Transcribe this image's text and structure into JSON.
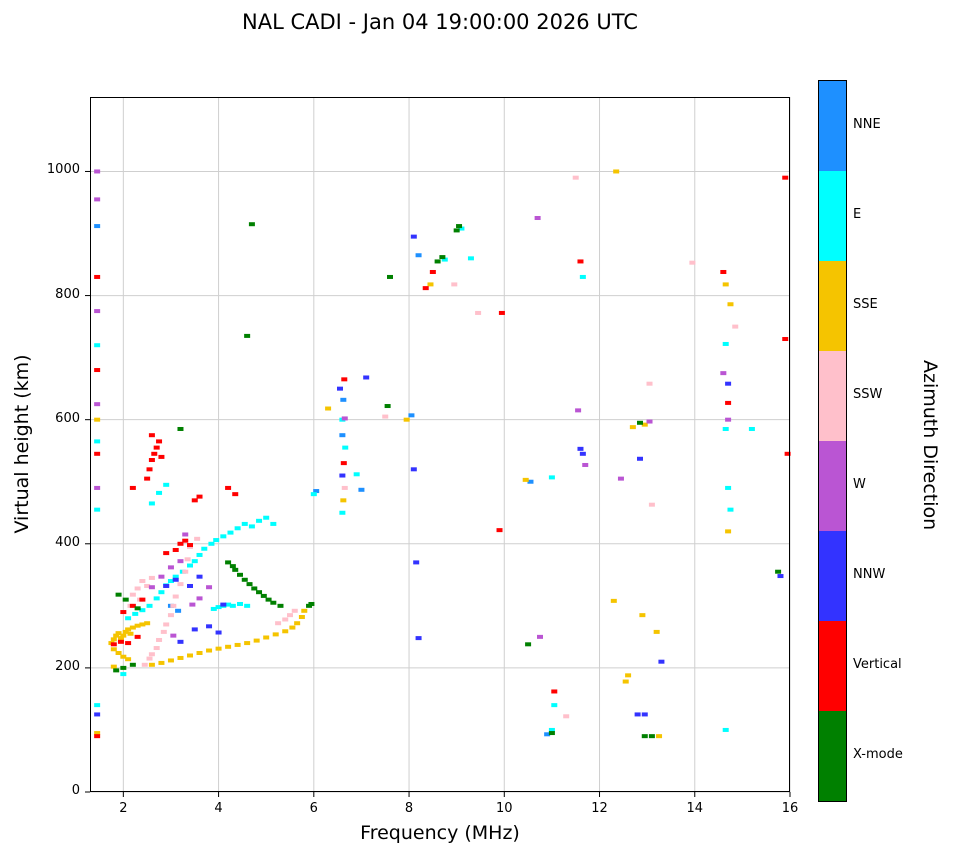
{
  "chart_data": {
    "type": "scatter",
    "title": "NAL CADI - Jan 04 19:00:00 2026 UTC",
    "xlabel": "Frequency (MHz)",
    "ylabel": "Virtual height (km)",
    "colorbar_label": "Azimuth Direction",
    "xlim": [
      1.3,
      16
    ],
    "ylim": [
      0,
      1120
    ],
    "xticks": [
      2,
      4,
      6,
      8,
      10,
      12,
      14,
      16
    ],
    "yticks": [
      0,
      200,
      400,
      600,
      800,
      1000
    ],
    "grid": true,
    "marker": "square",
    "legend_position": "right-colorbar",
    "legend": [
      {
        "label": "NNE",
        "color": "#1E90FF"
      },
      {
        "label": "E",
        "color": "#00FFFF"
      },
      {
        "label": "SSE",
        "color": "#F5C400"
      },
      {
        "label": "SSW",
        "color": "#FFC0CB"
      },
      {
        "label": "W",
        "color": "#BA55D3"
      },
      {
        "label": "NNW",
        "color": "#3333FF"
      },
      {
        "label": "Vertical",
        "color": "#FF0000"
      },
      {
        "label": "X-mode",
        "color": "#008000"
      }
    ],
    "series": [
      {
        "name": "NNE",
        "color": "#1E90FF",
        "points": [
          [
            1.45,
            912
          ],
          [
            3.0,
            300
          ],
          [
            3.15,
            292
          ],
          [
            6.05,
            485
          ],
          [
            6.6,
            575
          ],
          [
            6.62,
            632
          ],
          [
            7.0,
            487
          ],
          [
            8.05,
            607
          ],
          [
            8.2,
            865
          ],
          [
            10.55,
            500
          ],
          [
            10.9,
            93
          ]
        ]
      },
      {
        "name": "E",
        "color": "#00FFFF",
        "points": [
          [
            1.45,
            720
          ],
          [
            1.45,
            565
          ],
          [
            1.45,
            455
          ],
          [
            1.45,
            140
          ],
          [
            2.0,
            190
          ],
          [
            2.1,
            280
          ],
          [
            2.25,
            287
          ],
          [
            2.4,
            293
          ],
          [
            2.55,
            300
          ],
          [
            2.7,
            312
          ],
          [
            2.8,
            322
          ],
          [
            2.9,
            333
          ],
          [
            3.0,
            340
          ],
          [
            3.1,
            347
          ],
          [
            3.25,
            355
          ],
          [
            3.4,
            365
          ],
          [
            3.5,
            372
          ],
          [
            3.6,
            382
          ],
          [
            3.7,
            392
          ],
          [
            3.85,
            400
          ],
          [
            3.95,
            406
          ],
          [
            4.1,
            412
          ],
          [
            4.25,
            418
          ],
          [
            4.4,
            425
          ],
          [
            4.55,
            432
          ],
          [
            4.7,
            428
          ],
          [
            4.85,
            437
          ],
          [
            5.0,
            442
          ],
          [
            5.15,
            432
          ],
          [
            3.9,
            295
          ],
          [
            4.0,
            298
          ],
          [
            4.1,
            300
          ],
          [
            4.2,
            302
          ],
          [
            4.3,
            300
          ],
          [
            4.45,
            303
          ],
          [
            4.6,
            300
          ],
          [
            2.6,
            465
          ],
          [
            2.75,
            482
          ],
          [
            2.9,
            495
          ],
          [
            6.0,
            480
          ],
          [
            6.6,
            450
          ],
          [
            6.66,
            555
          ],
          [
            6.6,
            600
          ],
          [
            6.9,
            512
          ],
          [
            8.75,
            858
          ],
          [
            9.1,
            908
          ],
          [
            9.3,
            860
          ],
          [
            11.0,
            100
          ],
          [
            11.05,
            140
          ],
          [
            11.0,
            507
          ],
          [
            11.65,
            830
          ],
          [
            14.65,
            585
          ],
          [
            15.2,
            585
          ],
          [
            14.65,
            722
          ],
          [
            14.7,
            490
          ],
          [
            14.75,
            455
          ],
          [
            14.65,
            100
          ]
        ]
      },
      {
        "name": "SSE",
        "color": "#F5C400",
        "points": [
          [
            1.45,
            600
          ],
          [
            1.45,
            95
          ],
          [
            1.75,
            240
          ],
          [
            1.8,
            246
          ],
          [
            1.85,
            252
          ],
          [
            1.9,
            256
          ],
          [
            1.95,
            248
          ],
          [
            2.0,
            252
          ],
          [
            2.05,
            258
          ],
          [
            2.1,
            262
          ],
          [
            2.15,
            255
          ],
          [
            2.2,
            265
          ],
          [
            2.3,
            268
          ],
          [
            2.4,
            270
          ],
          [
            2.5,
            272
          ],
          [
            1.8,
            230
          ],
          [
            1.9,
            224
          ],
          [
            2.0,
            218
          ],
          [
            2.1,
            214
          ],
          [
            1.8,
            202
          ],
          [
            2.6,
            205
          ],
          [
            2.8,
            208
          ],
          [
            3.0,
            212
          ],
          [
            3.2,
            216
          ],
          [
            3.4,
            220
          ],
          [
            3.6,
            224
          ],
          [
            3.8,
            228
          ],
          [
            4.0,
            231
          ],
          [
            4.2,
            234
          ],
          [
            4.4,
            237
          ],
          [
            4.6,
            240
          ],
          [
            4.8,
            244
          ],
          [
            5.0,
            249
          ],
          [
            5.2,
            254
          ],
          [
            5.4,
            259
          ],
          [
            5.55,
            265
          ],
          [
            5.65,
            272
          ],
          [
            5.75,
            282
          ],
          [
            5.8,
            292
          ],
          [
            6.3,
            618
          ],
          [
            6.62,
            470
          ],
          [
            7.95,
            600
          ],
          [
            8.45,
            818
          ],
          [
            10.45,
            503
          ],
          [
            12.3,
            308
          ],
          [
            12.35,
            1000
          ],
          [
            12.55,
            178
          ],
          [
            12.6,
            188
          ],
          [
            12.7,
            588
          ],
          [
            12.95,
            592
          ],
          [
            12.9,
            285
          ],
          [
            13.2,
            258
          ],
          [
            13.25,
            90
          ],
          [
            14.65,
            818
          ],
          [
            14.75,
            786
          ],
          [
            14.7,
            420
          ]
        ]
      },
      {
        "name": "SSW",
        "color": "#FFC0CB",
        "points": [
          [
            2.45,
            205
          ],
          [
            2.55,
            215
          ],
          [
            2.6,
            222
          ],
          [
            2.7,
            232
          ],
          [
            2.75,
            245
          ],
          [
            2.85,
            258
          ],
          [
            2.9,
            270
          ],
          [
            3.0,
            285
          ],
          [
            3.05,
            300
          ],
          [
            3.1,
            315
          ],
          [
            3.2,
            335
          ],
          [
            3.3,
            355
          ],
          [
            3.35,
            375
          ],
          [
            3.4,
            395
          ],
          [
            2.2,
            318
          ],
          [
            2.3,
            328
          ],
          [
            2.4,
            340
          ],
          [
            2.5,
            332
          ],
          [
            2.6,
            345
          ],
          [
            2.35,
            310
          ],
          [
            2.15,
            300
          ],
          [
            5.25,
            272
          ],
          [
            5.4,
            278
          ],
          [
            5.5,
            285
          ],
          [
            5.6,
            292
          ],
          [
            3.55,
            408
          ],
          [
            6.65,
            490
          ],
          [
            7.5,
            605
          ],
          [
            8.95,
            818
          ],
          [
            9.45,
            772
          ],
          [
            11.3,
            122
          ],
          [
            11.5,
            990
          ],
          [
            13.05,
            658
          ],
          [
            13.1,
            463
          ],
          [
            13.95,
            853
          ],
          [
            14.85,
            750
          ]
        ]
      },
      {
        "name": "W",
        "color": "#BA55D3",
        "points": [
          [
            1.45,
            1000
          ],
          [
            1.45,
            955
          ],
          [
            1.45,
            775
          ],
          [
            1.45,
            625
          ],
          [
            1.45,
            490
          ],
          [
            2.6,
            330
          ],
          [
            2.8,
            347
          ],
          [
            3.0,
            362
          ],
          [
            3.2,
            372
          ],
          [
            3.45,
            302
          ],
          [
            3.6,
            312
          ],
          [
            3.3,
            415
          ],
          [
            3.05,
            252
          ],
          [
            3.8,
            330
          ],
          [
            6.65,
            602
          ],
          [
            10.7,
            925
          ],
          [
            10.75,
            250
          ],
          [
            11.55,
            615
          ],
          [
            11.7,
            527
          ],
          [
            12.45,
            505
          ],
          [
            13.05,
            597
          ],
          [
            14.6,
            675
          ],
          [
            14.7,
            600
          ]
        ]
      },
      {
        "name": "NNW",
        "color": "#3333FF",
        "points": [
          [
            1.45,
            125
          ],
          [
            2.9,
            332
          ],
          [
            3.1,
            342
          ],
          [
            3.4,
            332
          ],
          [
            3.6,
            347
          ],
          [
            3.5,
            262
          ],
          [
            3.8,
            267
          ],
          [
            4.0,
            257
          ],
          [
            3.2,
            242
          ],
          [
            4.1,
            302
          ],
          [
            6.55,
            650
          ],
          [
            6.6,
            510
          ],
          [
            7.1,
            668
          ],
          [
            8.1,
            895
          ],
          [
            8.1,
            520
          ],
          [
            8.15,
            370
          ],
          [
            8.2,
            248
          ],
          [
            11.6,
            553
          ],
          [
            11.65,
            545
          ],
          [
            12.85,
            537
          ],
          [
            12.8,
            125
          ],
          [
            12.95,
            125
          ],
          [
            13.3,
            210
          ],
          [
            14.7,
            658
          ],
          [
            15.8,
            348
          ]
        ]
      },
      {
        "name": "Vertical",
        "color": "#FF0000",
        "points": [
          [
            1.45,
            830
          ],
          [
            1.45,
            680
          ],
          [
            1.45,
            545
          ],
          [
            1.45,
            90
          ],
          [
            1.8,
            238
          ],
          [
            1.95,
            242
          ],
          [
            2.1,
            240
          ],
          [
            2.3,
            250
          ],
          [
            2.2,
            300
          ],
          [
            2.4,
            310
          ],
          [
            2.0,
            290
          ],
          [
            2.9,
            385
          ],
          [
            3.1,
            390
          ],
          [
            3.2,
            400
          ],
          [
            3.3,
            405
          ],
          [
            3.4,
            398
          ],
          [
            2.2,
            490
          ],
          [
            2.5,
            505
          ],
          [
            2.55,
            520
          ],
          [
            2.6,
            535
          ],
          [
            2.65,
            545
          ],
          [
            2.7,
            555
          ],
          [
            2.75,
            565
          ],
          [
            2.6,
            575
          ],
          [
            2.8,
            540
          ],
          [
            3.5,
            470
          ],
          [
            3.6,
            476
          ],
          [
            4.2,
            490
          ],
          [
            4.35,
            480
          ],
          [
            6.63,
            530
          ],
          [
            6.64,
            665
          ],
          [
            8.35,
            812
          ],
          [
            8.5,
            838
          ],
          [
            9.95,
            772
          ],
          [
            9.9,
            422
          ],
          [
            11.05,
            162
          ],
          [
            11.6,
            855
          ],
          [
            14.6,
            838
          ],
          [
            14.7,
            627
          ],
          [
            15.9,
            990
          ],
          [
            15.9,
            730
          ],
          [
            15.95,
            545
          ]
        ]
      },
      {
        "name": "X-mode",
        "color": "#008000",
        "points": [
          [
            1.85,
            196
          ],
          [
            2.0,
            200
          ],
          [
            2.2,
            205
          ],
          [
            1.9,
            318
          ],
          [
            2.05,
            310
          ],
          [
            2.3,
            296
          ],
          [
            4.2,
            370
          ],
          [
            4.3,
            364
          ],
          [
            4.35,
            358
          ],
          [
            4.45,
            350
          ],
          [
            4.55,
            342
          ],
          [
            4.65,
            335
          ],
          [
            4.75,
            328
          ],
          [
            4.85,
            322
          ],
          [
            4.95,
            316
          ],
          [
            5.05,
            310
          ],
          [
            5.15,
            305
          ],
          [
            5.3,
            300
          ],
          [
            5.9,
            300
          ],
          [
            5.95,
            303
          ],
          [
            3.2,
            585
          ],
          [
            4.6,
            735
          ],
          [
            4.7,
            915
          ],
          [
            7.55,
            622
          ],
          [
            7.6,
            830
          ],
          [
            8.6,
            855
          ],
          [
            8.7,
            862
          ],
          [
            9.0,
            905
          ],
          [
            9.05,
            912
          ],
          [
            10.5,
            238
          ],
          [
            11.0,
            95
          ],
          [
            12.85,
            595
          ],
          [
            12.95,
            90
          ],
          [
            13.1,
            90
          ],
          [
            15.75,
            355
          ]
        ]
      }
    ]
  }
}
